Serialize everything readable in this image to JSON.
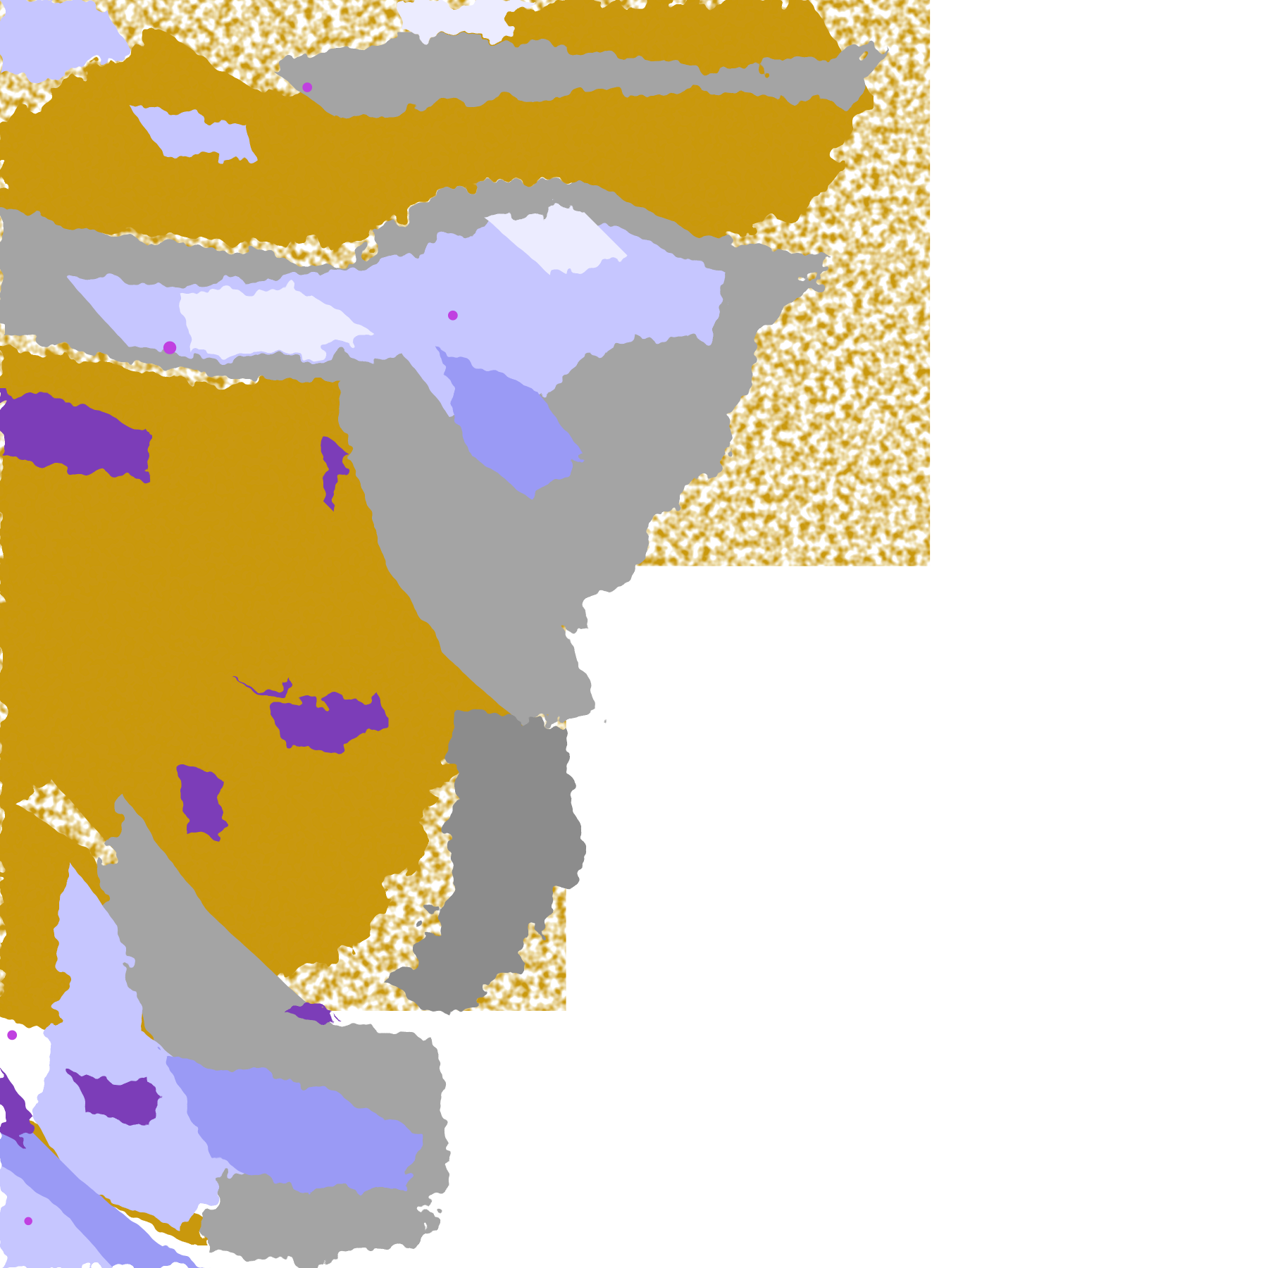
{
  "map": {
    "background": "#ffffff",
    "palette": {
      "gold": "#c9980f",
      "purple": "#7b3cb8",
      "magenta": "#c040e0",
      "lavender": "#c6c6ff",
      "periwinkle": "#9a9af5",
      "pale": "#ececff",
      "gray": "#a4a4a4",
      "dark_gray": "#8c8c8c"
    }
  }
}
